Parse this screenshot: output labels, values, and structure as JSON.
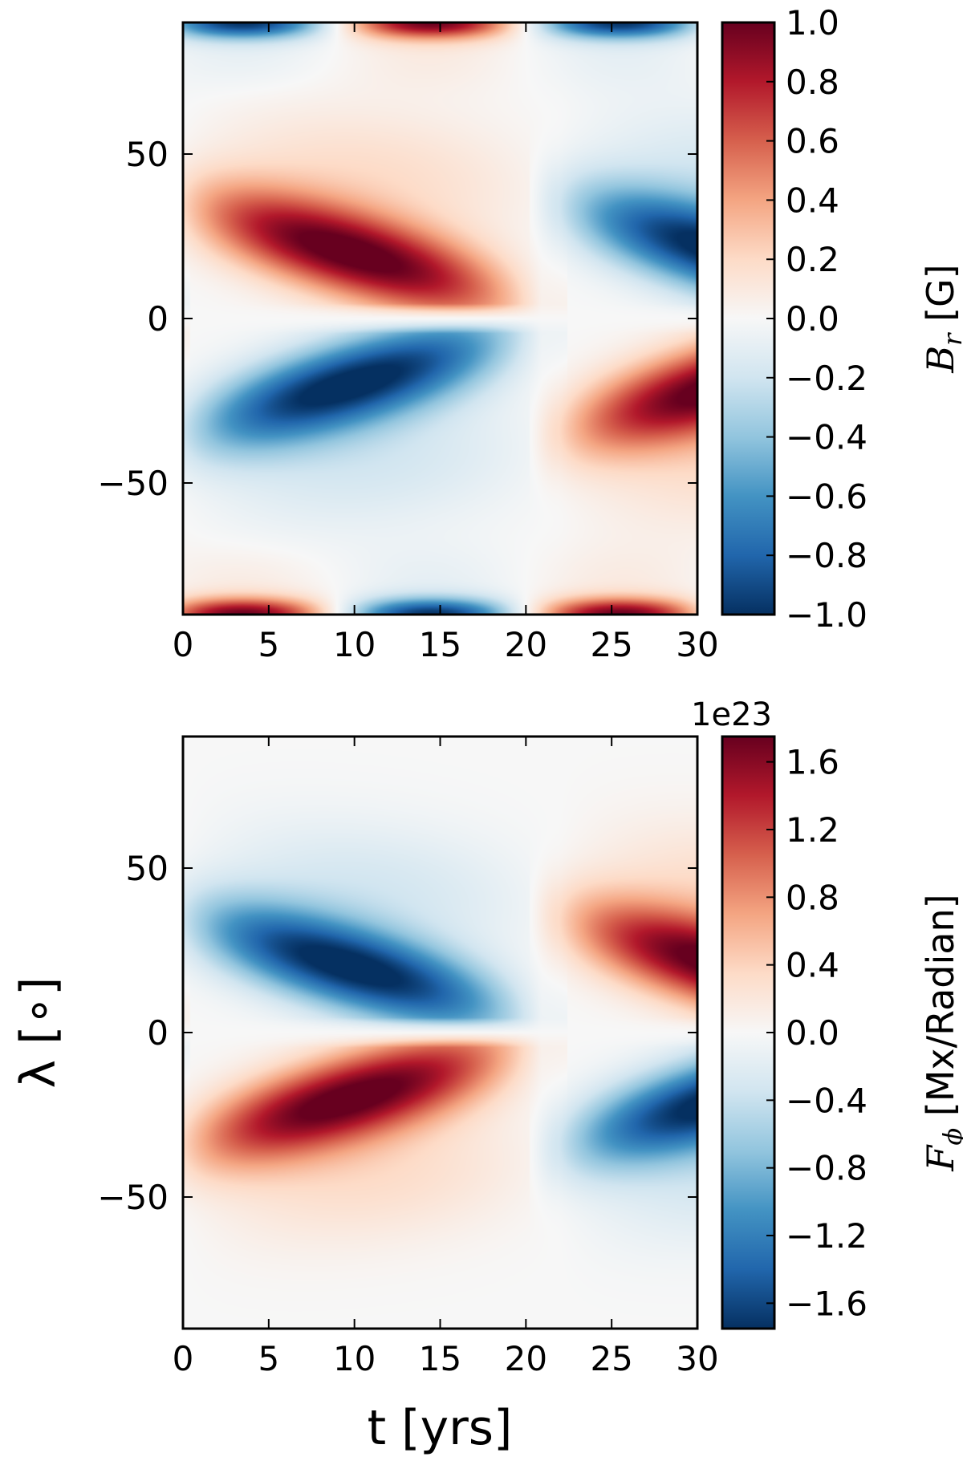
{
  "chart_data": [
    {
      "type": "heatmap",
      "title": "",
      "xlabel": "",
      "ylabel": "",
      "xlim": [
        0,
        30
      ],
      "ylim": [
        -90,
        90
      ],
      "xticks": [
        "0",
        "5",
        "10",
        "15",
        "20",
        "25",
        "30"
      ],
      "yticks": [
        "50",
        "0",
        "−50"
      ],
      "colorbar": {
        "label_symbol": "B",
        "label_subscript": "r",
        "label_unit": " [G]",
        "range": [
          -1.0,
          1.0
        ],
        "ticks": [
          "1.0",
          "0.8",
          "0.6",
          "0.4",
          "0.2",
          "0.0",
          "−0.2",
          "−0.4",
          "−0.6",
          "−0.8",
          "−1.0"
        ],
        "offset_text": "",
        "colormap": "RdBu_r"
      },
      "field": {
        "description": "Butterfly diagram: equatorward-migrating bands, antisymmetric about equator, polar patches",
        "period_yrs": 22,
        "band_peak_amplitude": 1.0,
        "polar_peak_amplitude": 1.0,
        "parity": "antisymmetric"
      }
    },
    {
      "type": "heatmap",
      "title": "",
      "xlabel": "t [yrs]",
      "ylabel": "λ [∘]",
      "xlim": [
        0,
        30
      ],
      "ylim": [
        -90,
        90
      ],
      "xticks": [
        "0",
        "5",
        "10",
        "15",
        "20",
        "25",
        "30"
      ],
      "yticks": [
        "50",
        "0",
        "−50"
      ],
      "colorbar": {
        "label_symbol": "F",
        "label_subscript": "ϕ",
        "label_unit": " [Mx/Radian]",
        "range": [
          -1.75,
          1.75
        ],
        "ticks": [
          "1.6",
          "1.2",
          "0.8",
          "0.4",
          "0.0",
          "−0.4",
          "−0.8",
          "−1.2",
          "−1.6"
        ],
        "offset_text": "1e23",
        "colormap": "RdBu_r"
      },
      "field": {
        "description": "Butterfly diagram of toroidal flux, no polar patches",
        "period_yrs": 22,
        "band_peak_amplitude": 1.7,
        "parity": "antisymmetric"
      }
    }
  ]
}
